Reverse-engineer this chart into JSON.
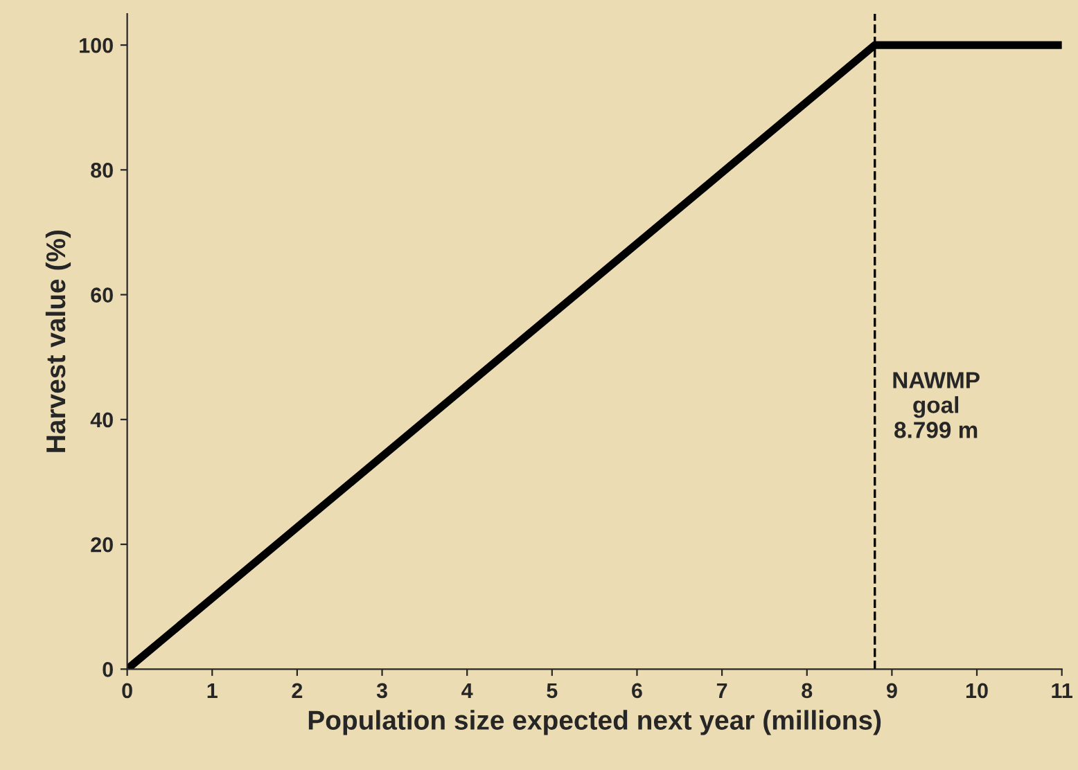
{
  "chart_data": {
    "type": "line",
    "xlabel": "Population size expected next year (millions)",
    "ylabel": "Harvest value (%)",
    "series": [
      {
        "x": [
          0,
          8.799,
          11
        ],
        "values": [
          0,
          100,
          100
        ],
        "color": "#000000"
      }
    ],
    "xlim": [
      0,
      11
    ],
    "xticks": [
      0,
      1,
      2,
      3,
      4,
      5,
      6,
      7,
      8,
      9,
      10,
      11
    ],
    "ylim": [
      0,
      105
    ],
    "yticks": [
      0,
      20,
      40,
      60,
      80,
      100
    ],
    "ref_lines": [
      {
        "axis": "x",
        "value": 8.799,
        "label": "NAWMP\ngoal\n8.799 m",
        "color": "#000000",
        "line_style": "dashed"
      }
    ],
    "grid": false,
    "legend": false,
    "marker": "none",
    "line_style": "solid"
  }
}
